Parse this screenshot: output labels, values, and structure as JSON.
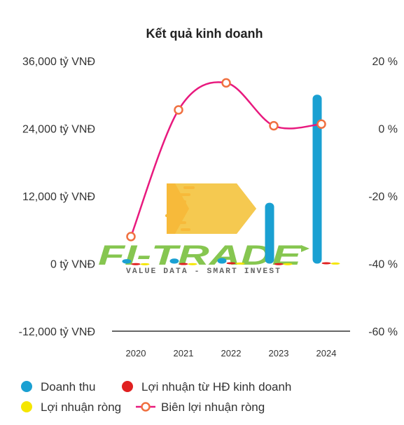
{
  "chart_data": {
    "type": "bar",
    "title": "Kết quả kinh doanh",
    "categories": [
      "2020",
      "2021",
      "2022",
      "2023",
      "2024"
    ],
    "y_left": {
      "range": [
        -12000,
        36000
      ],
      "ticks": [
        36000,
        24000,
        12000,
        0,
        -12000
      ],
      "tick_labels": [
        "36,000 tỷ VNĐ",
        "24,000 tỷ VNĐ",
        "12,000 tỷ VNĐ",
        "0 tỷ VNĐ",
        "-12,000 tỷ VNĐ"
      ]
    },
    "y_right": {
      "range": [
        -60,
        20
      ],
      "ticks": [
        20,
        0,
        -20,
        -40,
        -60
      ],
      "tick_labels": [
        "20 %",
        "0 %",
        "-20 %",
        "-40 %",
        "-60 %"
      ]
    },
    "series": [
      {
        "name": "Doanh thu",
        "type": "bar",
        "axis": "left",
        "color": "#1aa0d2",
        "values": [
          800,
          900,
          1000,
          10800,
          30000
        ]
      },
      {
        "name": "Lợi nhuận từ HĐ kinh doanh",
        "type": "bar",
        "axis": "left",
        "color": "#e02020",
        "values": [
          100,
          120,
          250,
          100,
          250
        ]
      },
      {
        "name": "Lợi nhuận ròng",
        "type": "bar",
        "axis": "left",
        "color": "#f5e600",
        "values": [
          80,
          100,
          200,
          80,
          200
        ]
      },
      {
        "name": "Biên lợi nhuận ròng",
        "type": "line",
        "axis": "right",
        "color": "#e8197e",
        "marker_color": "#f07040",
        "values": [
          -32,
          5.5,
          13.5,
          0.8,
          1.3
        ]
      }
    ],
    "grid": false,
    "legend_position": "bottom"
  },
  "watermark": {
    "brand": "FI-TRADE",
    "tagline": "VALUE DATA - SMART INVEST"
  }
}
